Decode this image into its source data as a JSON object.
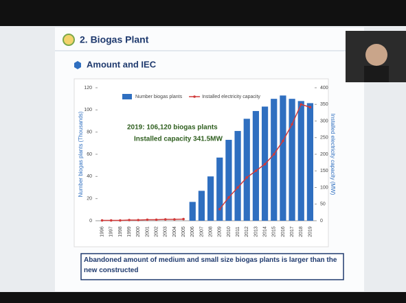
{
  "slide": {
    "title": "2. Biogas Plant",
    "heading": "Amount and IEC",
    "annotation": [
      "2019: 106,120 biogas plants",
      "Installed capacity 341.5MW"
    ],
    "note": "Abandoned amount of medium and small size biogas plants is larger than the new constructed"
  },
  "chart_data": {
    "type": "bar",
    "categories": [
      "1996",
      "1997",
      "1998",
      "1999",
      "2000",
      "2001",
      "2002",
      "2003",
      "2004",
      "2005",
      "2006",
      "2007",
      "2008",
      "2009",
      "2010",
      "2011",
      "2012",
      "2013",
      "2014",
      "2015",
      "2016",
      "2017",
      "2018",
      "2019"
    ],
    "ylabel": "Number biogas plants (Thousands)",
    "y2label": "Installed electricity capacity (MW)",
    "ylim": [
      0,
      120
    ],
    "yticks": [
      0,
      20,
      40,
      60,
      80,
      100,
      120
    ],
    "y2lim": [
      0,
      400
    ],
    "y2ticks": [
      0,
      50,
      100,
      150,
      200,
      250,
      300,
      350,
      400
    ],
    "legend": "top",
    "series": [
      {
        "name": "Number biogas plants",
        "color": "#2f6fc0",
        "values": [
          null,
          null,
          null,
          null,
          null,
          null,
          null,
          null,
          null,
          null,
          17,
          27,
          40,
          57,
          73,
          81,
          92,
          99,
          103,
          110,
          113,
          110,
          108,
          106.12
        ]
      },
      {
        "name": "Installed electricity capacity",
        "color": "#d03a3a",
        "axis": "y2",
        "values": [
          1,
          1,
          1,
          2,
          2,
          3,
          3,
          4,
          4,
          5,
          null,
          null,
          null,
          35,
          70,
          100,
          130,
          150,
          170,
          200,
          240,
          290,
          350,
          341.5
        ]
      }
    ]
  }
}
